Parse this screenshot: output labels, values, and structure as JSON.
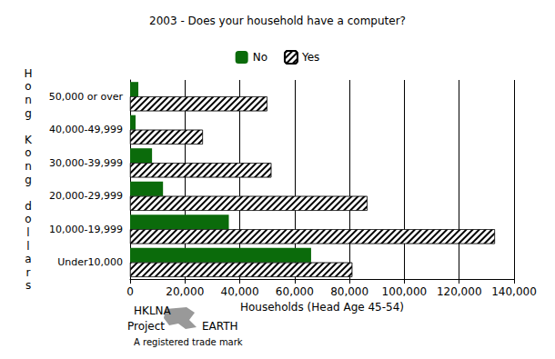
{
  "chart_data": {
    "type": "bar",
    "title": "2003 - Does your household have a computer?",
    "orientation": "horizontal",
    "x_label": "Households (Head Age 45-54)",
    "y_label": "Hong Kong dollars",
    "categories": [
      "Under10,000",
      "10,000-19,999",
      "20,000-29,999",
      "30,000-39,999",
      "40,000-49,999",
      "50,000 or over"
    ],
    "series": [
      {
        "name": "No",
        "color": "#0b6b0b",
        "values": [
          66000,
          36000,
          12000,
          8000,
          2000,
          3000
        ]
      },
      {
        "name": "Yes",
        "color": "#000000",
        "values": [
          81000,
          133000,
          86500,
          51500,
          26500,
          50000
        ]
      }
    ],
    "xlim": [
      0,
      140000
    ],
    "xticks": [
      0,
      {
        "value": 20000,
        "label": "20,000"
      },
      {
        "value": 40000,
        "label": "40,000"
      },
      {
        "value": 60000,
        "label": "60,000"
      },
      {
        "value": 80000,
        "label": "80,000"
      },
      {
        "value": 100000,
        "label": "100,000"
      },
      {
        "value": 120000,
        "label": "120,000"
      },
      {
        "value": 140000,
        "label": "140,000"
      }
    ],
    "grid": true,
    "legend": "top",
    "annotations": [
      "HKLNA",
      "Project",
      "EARTH",
      "A registered trade mark"
    ]
  }
}
